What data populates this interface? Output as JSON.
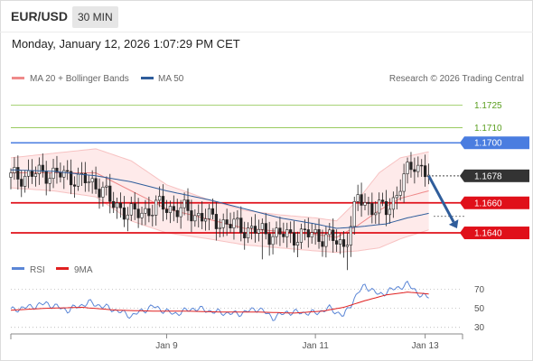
{
  "header": {
    "symbol": "EUR/USD",
    "timeframe": "30 MIN",
    "datetime": "Monday, January 12, 2026 1:07:29 PM CET"
  },
  "legend": {
    "ma20_label": "MA 20 + Bollinger Bands",
    "ma50_label": "MA 50",
    "credit": "Research © 2026 Trading Central",
    "ma20_color": "#ef8a8a",
    "ma50_color": "#2f5d9b"
  },
  "rsi_legend": {
    "rsi_label": "RSI",
    "ma_label": "9MA",
    "rsi_color": "#5b86d6",
    "ma_color": "#e02020"
  },
  "chart_data": [
    {
      "type": "candlestick",
      "panel": "price",
      "ylim": [
        1.1628,
        1.1738
      ],
      "x_ticks": [
        {
          "label": "Jan 9",
          "index": 44
        },
        {
          "label": "Jan 11",
          "index": 86
        },
        {
          "label": "Jan 13",
          "index": 117
        }
      ],
      "levels": [
        {
          "value": 1.1725,
          "label": "1.1725",
          "kind": "target",
          "color": "#8bc34a",
          "text_color": "#5a9e1e"
        },
        {
          "value": 1.171,
          "label": "1.1710",
          "kind": "target",
          "color": "#8bc34a",
          "text_color": "#5a9e1e"
        },
        {
          "value": 1.17,
          "label": "1.1700",
          "kind": "pivot",
          "color": "#4a7de0",
          "text_color": "#ffffff"
        },
        {
          "value": 1.1678,
          "label": "1.1678",
          "kind": "last",
          "color": "#333333",
          "text_color": "#ffffff"
        },
        {
          "value": 1.166,
          "label": "1.1660",
          "kind": "support",
          "color": "#e0101a",
          "text_color": "#ffffff"
        },
        {
          "value": 1.164,
          "label": "1.1640",
          "kind": "support",
          "color": "#e0101a",
          "text_color": "#ffffff"
        }
      ],
      "close_path": [
        [
          0,
          1.1677
        ],
        [
          10,
          1.168
        ],
        [
          18,
          1.1677
        ],
        [
          26,
          1.167
        ],
        [
          28,
          1.166
        ],
        [
          35,
          1.1652
        ],
        [
          42,
          1.1658
        ],
        [
          50,
          1.1654
        ],
        [
          58,
          1.1648
        ],
        [
          66,
          1.1643
        ],
        [
          72,
          1.164
        ],
        [
          78,
          1.1638
        ],
        [
          86,
          1.1639
        ],
        [
          90,
          1.1636
        ],
        [
          94,
          1.1632
        ],
        [
          96,
          1.1645
        ],
        [
          98,
          1.1663
        ],
        [
          102,
          1.1657
        ],
        [
          106,
          1.1655
        ],
        [
          108,
          1.1662
        ],
        [
          110,
          1.1672
        ],
        [
          112,
          1.168
        ],
        [
          114,
          1.1686
        ],
        [
          116,
          1.1684
        ],
        [
          118,
          1.1678
        ]
      ],
      "bollinger": {
        "upper": [
          [
            0,
            1.169
          ],
          [
            12,
            1.1693
          ],
          [
            24,
            1.1696
          ],
          [
            34,
            1.1688
          ],
          [
            44,
            1.1672
          ],
          [
            56,
            1.1662
          ],
          [
            66,
            1.1655
          ],
          [
            76,
            1.1652
          ],
          [
            86,
            1.165
          ],
          [
            92,
            1.1648
          ],
          [
            98,
            1.1662
          ],
          [
            104,
            1.168
          ],
          [
            110,
            1.169
          ],
          [
            118,
            1.1694
          ]
        ],
        "lower": [
          [
            0,
            1.167
          ],
          [
            12,
            1.1668
          ],
          [
            24,
            1.1664
          ],
          [
            34,
            1.1648
          ],
          [
            44,
            1.164
          ],
          [
            56,
            1.1636
          ],
          [
            66,
            1.1632
          ],
          [
            76,
            1.163
          ],
          [
            86,
            1.1628
          ],
          [
            92,
            1.1627
          ],
          [
            98,
            1.1628
          ],
          [
            104,
            1.163
          ],
          [
            110,
            1.1636
          ],
          [
            118,
            1.1642
          ]
        ],
        "middle": [
          [
            0,
            1.168
          ],
          [
            12,
            1.168
          ],
          [
            24,
            1.168
          ],
          [
            34,
            1.1668
          ],
          [
            44,
            1.1656
          ],
          [
            56,
            1.1649
          ],
          [
            66,
            1.1643
          ],
          [
            76,
            1.1641
          ],
          [
            86,
            1.1639
          ],
          [
            92,
            1.1637
          ],
          [
            98,
            1.1645
          ],
          [
            104,
            1.1655
          ],
          [
            110,
            1.1663
          ],
          [
            118,
            1.1668
          ]
        ]
      },
      "ma50": [
        [
          0,
          1.1682
        ],
        [
          12,
          1.1681
        ],
        [
          24,
          1.1678
        ],
        [
          34,
          1.1674
        ],
        [
          44,
          1.1668
        ],
        [
          56,
          1.1662
        ],
        [
          66,
          1.1656
        ],
        [
          76,
          1.165
        ],
        [
          86,
          1.1646
        ],
        [
          92,
          1.1643
        ],
        [
          98,
          1.1644
        ],
        [
          106,
          1.1646
        ],
        [
          112,
          1.165
        ],
        [
          118,
          1.1653
        ]
      ],
      "forecast_arrow": {
        "from": [
          118,
          1.1678
        ],
        "to": [
          126,
          1.1643
        ],
        "color": "#2f5d9b"
      }
    },
    {
      "type": "line",
      "panel": "rsi",
      "ylim": [
        25,
        78
      ],
      "y_ticks": [
        70,
        50,
        30
      ],
      "series": [
        {
          "name": "RSI",
          "values": [
            [
              0,
              48
            ],
            [
              6,
              52
            ],
            [
              10,
              55
            ],
            [
              16,
              48
            ],
            [
              22,
              56
            ],
            [
              28,
              50
            ],
            [
              34,
              42
            ],
            [
              40,
              52
            ],
            [
              46,
              44
            ],
            [
              52,
              50
            ],
            [
              58,
              46
            ],
            [
              64,
              44
            ],
            [
              70,
              50
            ],
            [
              74,
              40
            ],
            [
              78,
              46
            ],
            [
              86,
              45
            ],
            [
              90,
              50
            ],
            [
              94,
              42
            ],
            [
              98,
              66
            ],
            [
              100,
              74
            ],
            [
              104,
              64
            ],
            [
              108,
              70
            ],
            [
              112,
              75
            ],
            [
              114,
              70
            ],
            [
              116,
              62
            ],
            [
              118,
              63
            ]
          ]
        },
        {
          "name": "9MA",
          "values": [
            [
              0,
              48
            ],
            [
              10,
              50
            ],
            [
              20,
              51
            ],
            [
              30,
              48
            ],
            [
              40,
              47
            ],
            [
              50,
              47
            ],
            [
              60,
              46
            ],
            [
              70,
              46
            ],
            [
              80,
              45
            ],
            [
              88,
              47
            ],
            [
              94,
              51
            ],
            [
              100,
              58
            ],
            [
              106,
              64
            ],
            [
              112,
              67
            ],
            [
              118,
              65
            ]
          ]
        }
      ]
    }
  ]
}
